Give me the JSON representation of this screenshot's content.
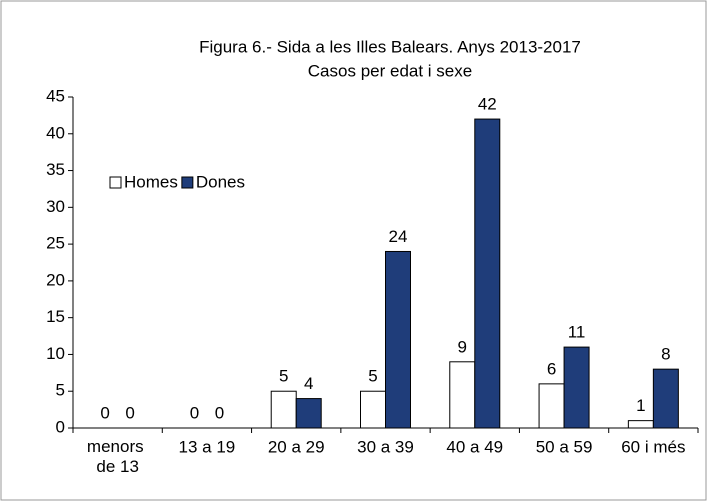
{
  "chart_data": {
    "type": "bar",
    "title": "Figura 6.- Sida a les Illes Balears. Anys 2013-2017",
    "subtitle": "Casos per edat i sexe",
    "categories": [
      "menors de 13",
      "13 a 19",
      "20 a 29",
      "30 a 39",
      "40 a 49",
      "50 a 59",
      "60 i més"
    ],
    "series": [
      {
        "name": "Homes",
        "color": "#ffffff",
        "values": [
          0,
          0,
          5,
          5,
          9,
          6,
          1
        ]
      },
      {
        "name": "Dones",
        "color": "#1f3d7a",
        "values": [
          0,
          0,
          4,
          24,
          42,
          11,
          8
        ]
      }
    ],
    "ylim": [
      0,
      45
    ],
    "yticks": [
      0,
      5,
      10,
      15,
      20,
      25,
      30,
      35,
      40,
      45
    ],
    "grid": false,
    "legend": "upper-left"
  }
}
